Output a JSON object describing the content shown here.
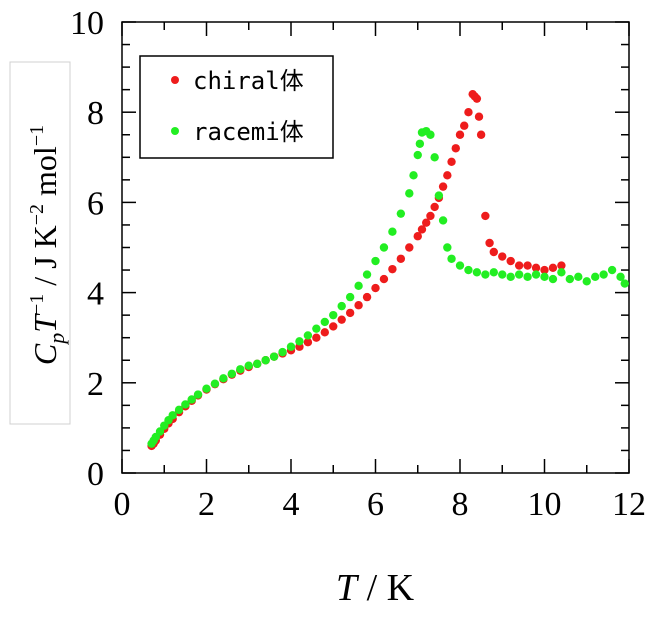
{
  "chart_data": {
    "type": "scatter",
    "xlabel": {
      "var": "T",
      "unit": " / K"
    },
    "ylabel": {
      "c": "C",
      "sub": "p",
      "t": "T",
      "exp1": "−1",
      "unit1": " / J K",
      "exp2": "−2",
      "unit2": " mol",
      "exp3": "−1"
    },
    "xlim": [
      0,
      12
    ],
    "ylim": [
      0,
      10
    ],
    "xticks": [
      0,
      2,
      4,
      6,
      8,
      10,
      12
    ],
    "yticks": [
      0,
      2,
      4,
      6,
      8,
      10
    ],
    "grid": false,
    "legend_position": "top-left",
    "series": [
      {
        "name": "chiral体",
        "color": "#ee1c1c",
        "x": [
          0.7,
          0.75,
          0.8,
          0.9,
          1.0,
          1.1,
          1.2,
          1.35,
          1.5,
          1.65,
          1.8,
          2.0,
          2.2,
          2.4,
          2.6,
          2.8,
          3.0,
          3.2,
          3.4,
          3.6,
          3.8,
          4.0,
          4.2,
          4.4,
          4.6,
          4.8,
          5.0,
          5.2,
          5.4,
          5.6,
          5.8,
          6.0,
          6.2,
          6.4,
          6.6,
          6.8,
          7.0,
          7.1,
          7.2,
          7.3,
          7.4,
          7.5,
          7.6,
          7.7,
          7.8,
          7.9,
          8.0,
          8.1,
          8.2,
          8.3,
          8.35,
          8.4,
          8.45,
          8.5,
          8.6,
          8.7,
          8.8,
          9.0,
          9.2,
          9.4,
          9.6,
          9.8,
          10.0,
          10.2,
          10.4
        ],
        "y": [
          0.6,
          0.65,
          0.72,
          0.85,
          0.98,
          1.1,
          1.2,
          1.35,
          1.48,
          1.6,
          1.72,
          1.85,
          1.97,
          2.08,
          2.18,
          2.27,
          2.35,
          2.42,
          2.5,
          2.58,
          2.65,
          2.72,
          2.8,
          2.9,
          3.0,
          3.12,
          3.25,
          3.4,
          3.55,
          3.72,
          3.9,
          4.1,
          4.3,
          4.52,
          4.75,
          5.0,
          5.25,
          5.4,
          5.55,
          5.7,
          5.9,
          6.1,
          6.35,
          6.6,
          6.9,
          7.2,
          7.5,
          7.7,
          8.0,
          8.4,
          8.35,
          8.3,
          7.9,
          7.5,
          5.7,
          5.1,
          4.9,
          4.8,
          4.7,
          4.6,
          4.6,
          4.55,
          4.5,
          4.55,
          4.6
        ]
      },
      {
        "name": "racemi体",
        "color": "#22ee22",
        "x": [
          0.7,
          0.75,
          0.8,
          0.9,
          1.0,
          1.1,
          1.2,
          1.35,
          1.5,
          1.65,
          1.8,
          2.0,
          2.2,
          2.4,
          2.6,
          2.8,
          3.0,
          3.2,
          3.4,
          3.6,
          3.8,
          4.0,
          4.2,
          4.4,
          4.6,
          4.8,
          5.0,
          5.2,
          5.4,
          5.6,
          5.8,
          6.0,
          6.2,
          6.4,
          6.6,
          6.8,
          6.9,
          7.0,
          7.05,
          7.1,
          7.2,
          7.3,
          7.4,
          7.5,
          7.6,
          7.7,
          7.8,
          8.0,
          8.2,
          8.4,
          8.6,
          8.8,
          9.0,
          9.2,
          9.4,
          9.6,
          9.8,
          10.0,
          10.2,
          10.4,
          10.6,
          10.8,
          11.0,
          11.2,
          11.4,
          11.6,
          11.8,
          11.9
        ],
        "y": [
          0.65,
          0.72,
          0.8,
          0.92,
          1.05,
          1.17,
          1.28,
          1.4,
          1.52,
          1.63,
          1.74,
          1.87,
          1.98,
          2.1,
          2.2,
          2.3,
          2.38,
          2.42,
          2.5,
          2.58,
          2.68,
          2.8,
          2.92,
          3.05,
          3.2,
          3.35,
          3.5,
          3.7,
          3.9,
          4.15,
          4.4,
          4.7,
          5.0,
          5.35,
          5.75,
          6.2,
          6.6,
          7.05,
          7.3,
          7.55,
          7.58,
          7.5,
          7.0,
          6.15,
          5.6,
          5.0,
          4.75,
          4.6,
          4.5,
          4.45,
          4.4,
          4.45,
          4.4,
          4.35,
          4.4,
          4.35,
          4.4,
          4.35,
          4.3,
          4.45,
          4.3,
          4.35,
          4.25,
          4.35,
          4.4,
          4.5,
          4.35,
          4.2
        ]
      }
    ]
  }
}
